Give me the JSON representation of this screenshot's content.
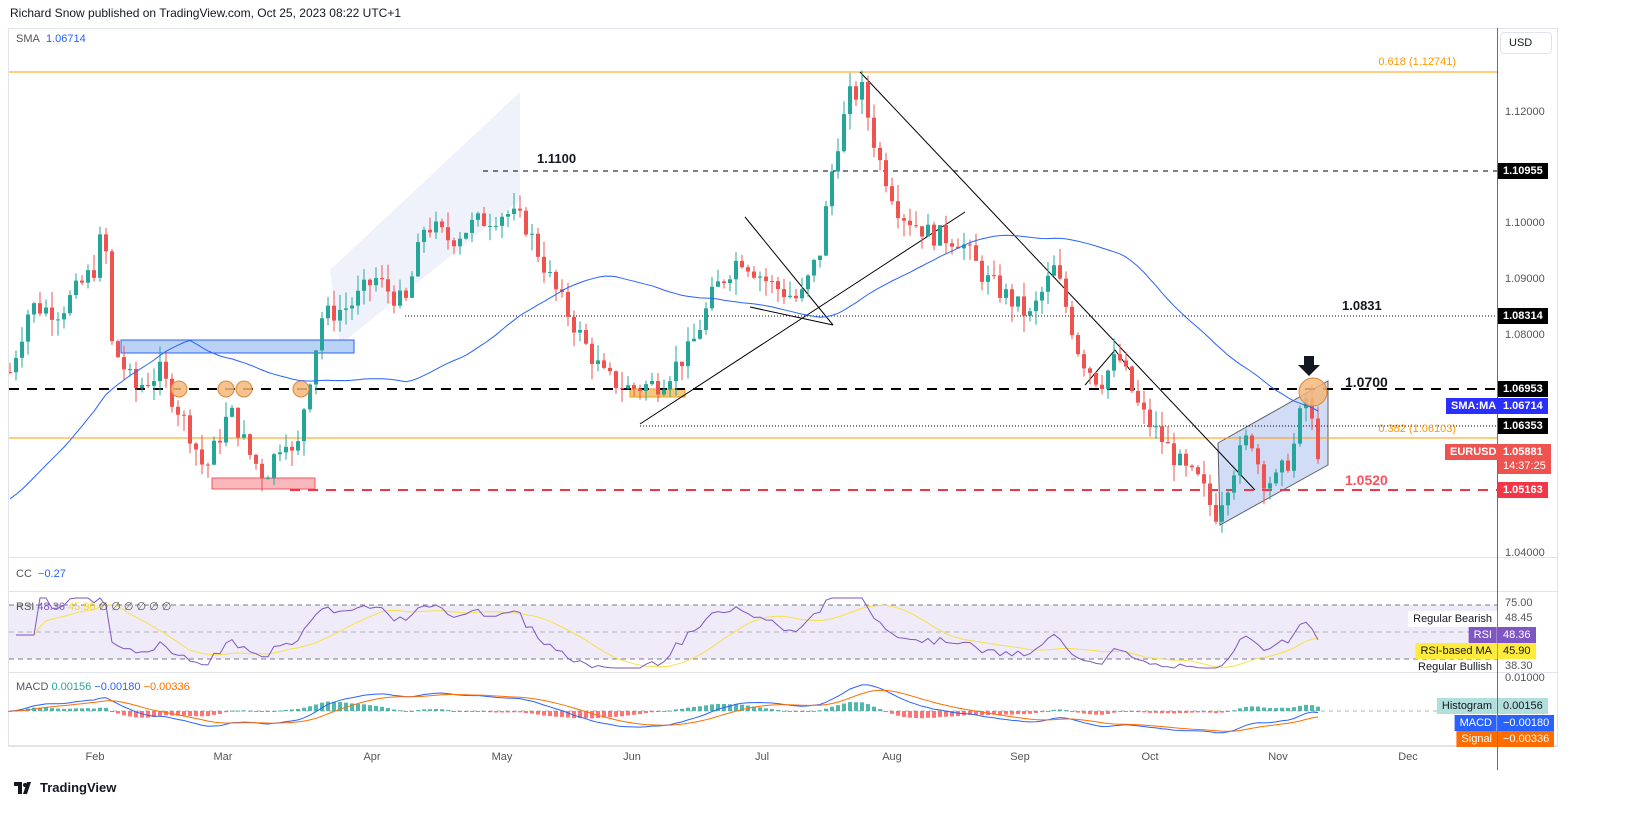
{
  "header": {
    "title": "Richard Snow published on TradingView.com, Oct 25, 2023 08:22 UTC+1"
  },
  "main_pane": {
    "sma_legend": {
      "name": "SMA",
      "value": "1.06714"
    },
    "currency": "USD",
    "axis_ticks": [
      "1.12000",
      "1.10000",
      "1.09000",
      "1.08000",
      "1.04000"
    ],
    "price_labels": {
      "l1": "1.10955",
      "l2": "1.08314",
      "l3": "1.06953",
      "sma": "1.06714",
      "l4": "1.06353",
      "last": "1.05881",
      "countdown": "14:37:25",
      "l5": "1.05163"
    },
    "tags": {
      "sma": "SMA:MA",
      "symbol": "EURUSD"
    },
    "annotations": {
      "a1100": "1.1100",
      "a0831": "1.0831",
      "a0700": "1.0700",
      "a0520": "1.0520",
      "fib618": "0.618 (1.12741)",
      "fib382": "0.382 (1.06103)"
    },
    "colors": {
      "up": "#26a69a",
      "down": "#ef5350",
      "sma": "#2962ff",
      "fib": "#ff9800",
      "support": "#f23645"
    },
    "price_path": [
      [
        10,
        1.073
      ],
      [
        30,
        1.085
      ],
      [
        60,
        1.084
      ],
      [
        95,
        1.092
      ],
      [
        104,
        1.1
      ],
      [
        112,
        1.078
      ],
      [
        135,
        1.07
      ],
      [
        160,
        1.073
      ],
      [
        190,
        1.062
      ],
      [
        205,
        1.055
      ],
      [
        230,
        1.066
      ],
      [
        250,
        1.058
      ],
      [
        265,
        1.054
      ],
      [
        285,
        1.062
      ],
      [
        295,
        1.056
      ],
      [
        305,
        1.068
      ],
      [
        322,
        1.083
      ],
      [
        350,
        1.085
      ],
      [
        375,
        1.09
      ],
      [
        405,
        1.085
      ],
      [
        425,
        1.1
      ],
      [
        450,
        1.097
      ],
      [
        475,
        1.1
      ],
      [
        505,
        1.102
      ],
      [
        525,
        1.1
      ],
      [
        555,
        1.088
      ],
      [
        585,
        1.078
      ],
      [
        605,
        1.072
      ],
      [
        630,
        1.07
      ],
      [
        660,
        1.071
      ],
      [
        690,
        1.077
      ],
      [
        715,
        1.088
      ],
      [
        740,
        1.094
      ],
      [
        770,
        1.089
      ],
      [
        800,
        1.086
      ],
      [
        820,
        1.095
      ],
      [
        835,
        1.113
      ],
      [
        850,
        1.123
      ],
      [
        862,
        1.124
      ],
      [
        878,
        1.112
      ],
      [
        900,
        1.102
      ],
      [
        930,
        1.098
      ],
      [
        960,
        1.097
      ],
      [
        985,
        1.09
      ],
      [
        1005,
        1.087
      ],
      [
        1030,
        1.083
      ],
      [
        1055,
        1.092
      ],
      [
        1080,
        1.076
      ],
      [
        1100,
        1.071
      ],
      [
        1118,
        1.076
      ],
      [
        1140,
        1.066
      ],
      [
        1165,
        1.06
      ],
      [
        1185,
        1.055
      ],
      [
        1200,
        1.053
      ],
      [
        1215,
        1.047
      ],
      [
        1232,
        1.055
      ],
      [
        1250,
        1.062
      ],
      [
        1262,
        1.054
      ],
      [
        1275,
        1.053
      ],
      [
        1292,
        1.058
      ],
      [
        1305,
        1.069
      ],
      [
        1318,
        1.0588
      ]
    ]
  },
  "cc_pane": {
    "name": "CC",
    "value": "−0.27"
  },
  "rsi_pane": {
    "name": "RSI",
    "v1": "48.36",
    "v2": "45.90",
    "extra": "∅ ∅ ∅ ∅ ∅ ∅",
    "axis": {
      "top": "75.00"
    },
    "labels": {
      "bear": "Regular Bearish",
      "bear_v": "48.45",
      "rsi": "RSI",
      "rsi_v": "48.36",
      "ma": "RSI-based MA",
      "ma_v": "45.90",
      "bull": "Regular Bullish",
      "bull_v": "38.30"
    }
  },
  "macd_pane": {
    "name": "MACD",
    "v1": "0.00156",
    "v2": "−0.00180",
    "v3": "−0.00336",
    "axis_top": "0.01000",
    "labels": {
      "hist": "Histogram",
      "hist_v": "0.00156",
      "macd": "MACD",
      "macd_v": "−0.00180",
      "sig": "Signal",
      "sig_v": "−0.00336"
    }
  },
  "time_axis": [
    "Feb",
    "Mar",
    "Apr",
    "May",
    "Jun",
    "Jul",
    "Aug",
    "Sep",
    "Oct",
    "Nov",
    "Dec"
  ],
  "footer": {
    "brand": "TradingView"
  }
}
